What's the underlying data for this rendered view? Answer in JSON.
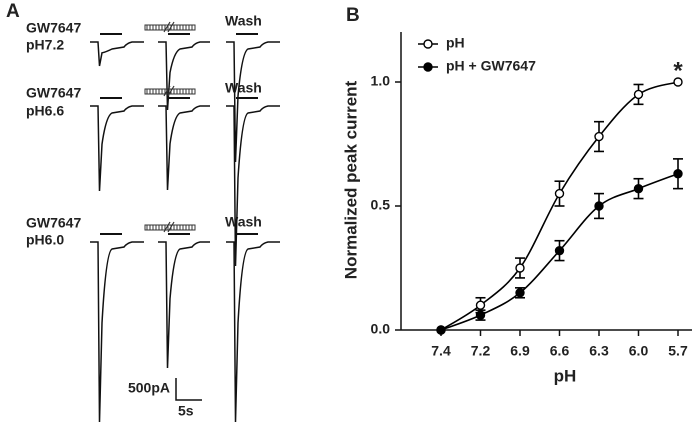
{
  "figure": {
    "panel_a_label": "A",
    "panel_b_label": "B",
    "rows": [
      {
        "drug": "GW7647",
        "ph": "pH7.2",
        "wash": "Wash"
      },
      {
        "drug": "GW7647",
        "ph": "pH6.6",
        "wash": "Wash"
      },
      {
        "drug": "GW7647",
        "ph": "pH6.0",
        "wash": "Wash"
      }
    ],
    "scale_current": "500pA",
    "scale_time": "5s"
  },
  "chart_data": {
    "type": "line",
    "xlabel": "pH",
    "ylabel": "Normalized peak current",
    "categories": [
      "7.4",
      "7.2",
      "6.9",
      "6.6",
      "6.3",
      "6.0",
      "5.7"
    ],
    "ylim": [
      0,
      1.2
    ],
    "yticks": [
      {
        "value": 0,
        "label": "0.0"
      },
      {
        "value": 0.5,
        "label": "0.5"
      },
      {
        "value": 1,
        "label": "1.0"
      }
    ],
    "series": [
      {
        "name": "pH",
        "color": "#000000",
        "marker": "open",
        "values": [
          0.0,
          0.1,
          0.25,
          0.55,
          0.78,
          0.95,
          1.0
        ],
        "errors": [
          0.0,
          0.03,
          0.04,
          0.05,
          0.06,
          0.04,
          0.0
        ]
      },
      {
        "name": "pH + GW7647",
        "color": "#000000",
        "marker": "filled",
        "values": [
          0.0,
          0.06,
          0.15,
          0.32,
          0.5,
          0.57,
          0.63
        ],
        "errors": [
          0.0,
          0.02,
          0.02,
          0.04,
          0.05,
          0.04,
          0.06
        ]
      }
    ],
    "annotations": [
      {
        "text": "*",
        "category": "5.7"
      }
    ],
    "legend": "upper left"
  }
}
